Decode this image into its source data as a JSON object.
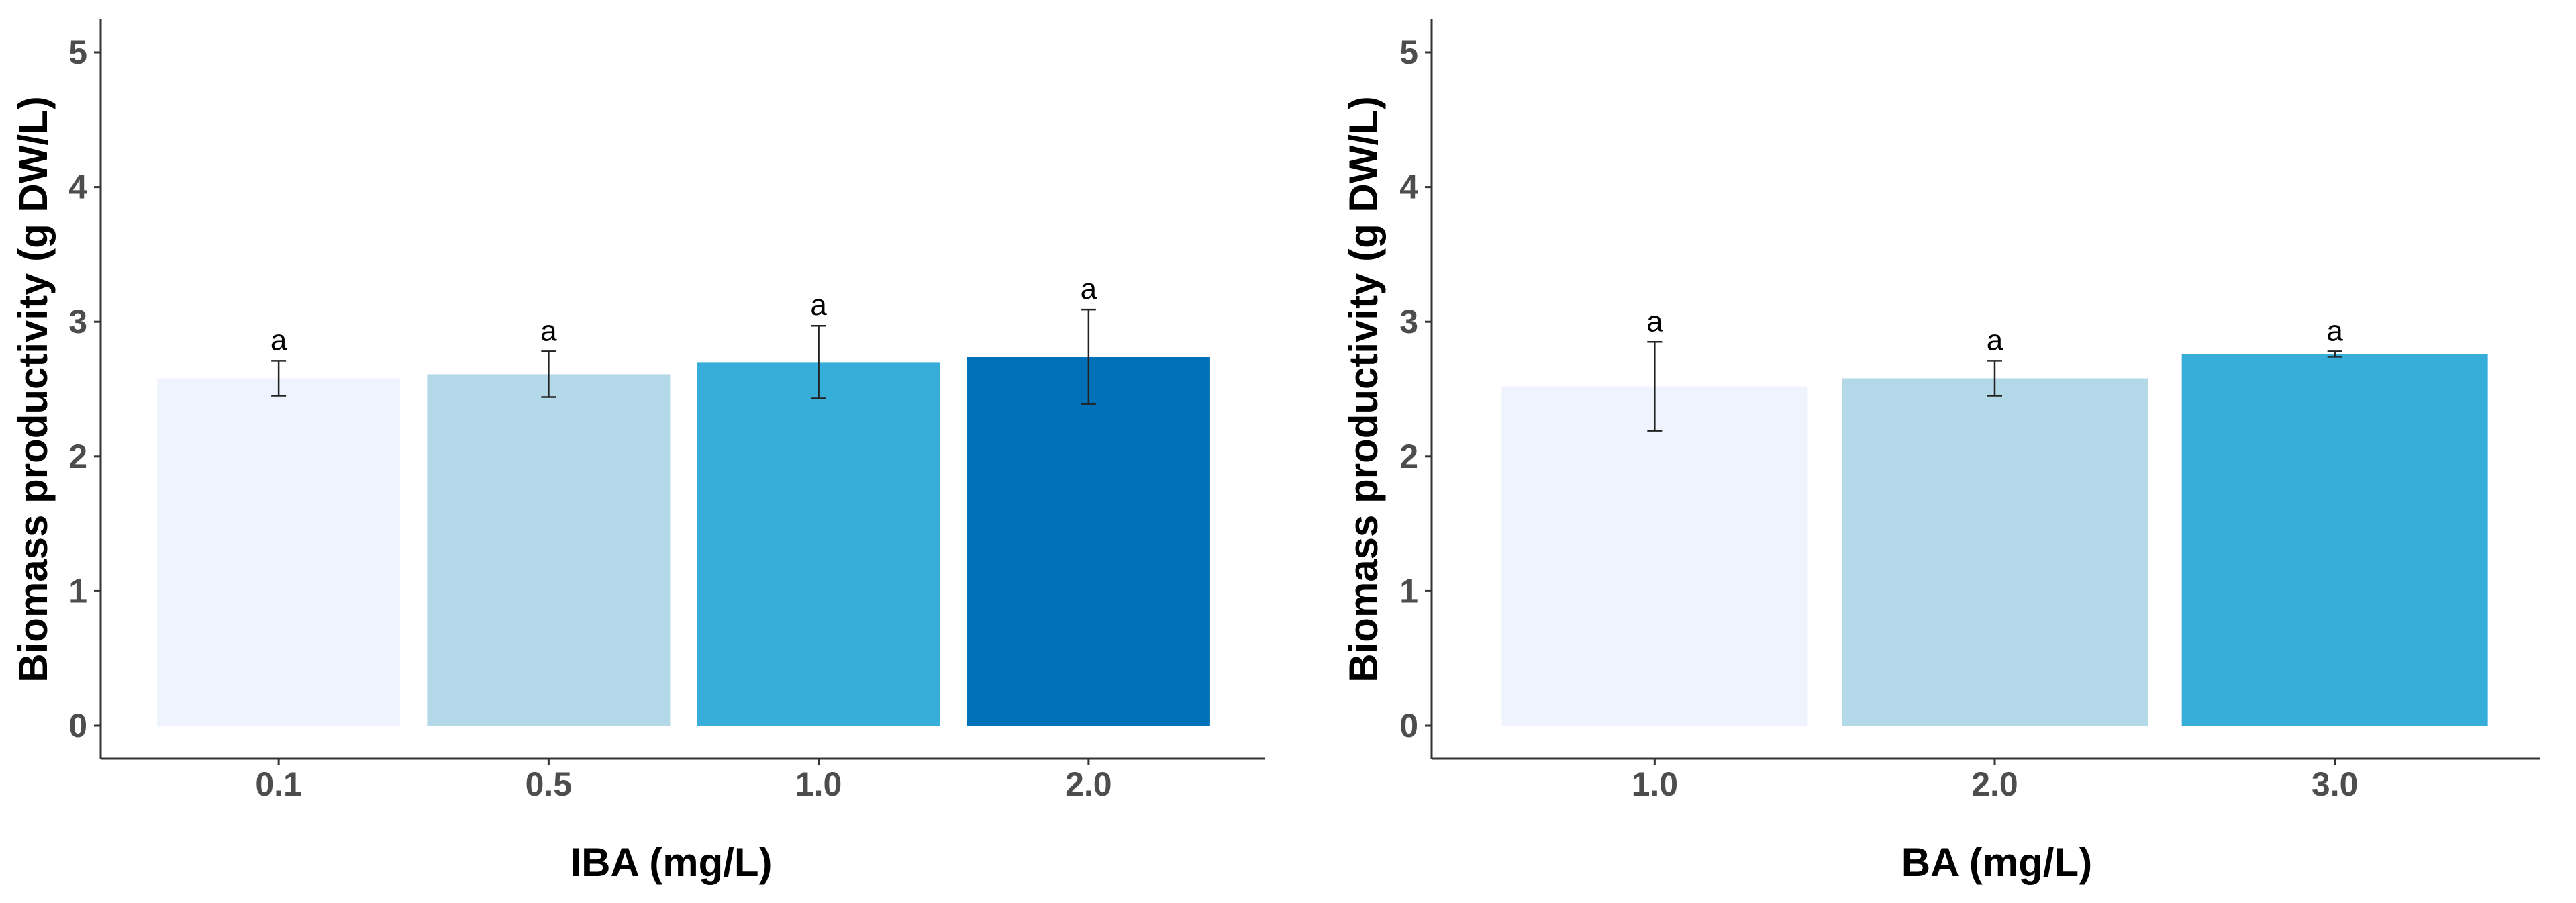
{
  "chart_data": [
    {
      "type": "bar",
      "xlabel": "IBA (mg/L)",
      "ylabel": "Biomass productivity (g DW/L)",
      "ylim": [
        0,
        5
      ],
      "yticks": [
        "0",
        "1",
        "2",
        "3",
        "4",
        "5"
      ],
      "categories": [
        "0.1",
        "0.5",
        "1.0",
        "2.0"
      ],
      "values": [
        2.58,
        2.61,
        2.7,
        2.74
      ],
      "errors": [
        0.13,
        0.17,
        0.27,
        0.35
      ],
      "labels": [
        "a",
        "a",
        "a",
        "a"
      ],
      "colors": [
        "#eef3fd",
        "#b3d8e7",
        "#37aed9",
        "#0071b8"
      ],
      "grid": false,
      "legend": "none"
    },
    {
      "type": "bar",
      "xlabel": "BA (mg/L)",
      "ylabel": "Biomass productivity (g DW/L)",
      "ylim": [
        0,
        5
      ],
      "yticks": [
        "0",
        "1",
        "2",
        "3",
        "4",
        "5"
      ],
      "categories": [
        "1.0",
        "2.0",
        "3.0"
      ],
      "values": [
        2.52,
        2.58,
        2.76
      ],
      "errors": [
        0.33,
        0.13,
        0.02
      ],
      "labels": [
        "a",
        "a",
        "a"
      ],
      "colors": [
        "#eef3fd",
        "#b3d8e7",
        "#37aed9"
      ],
      "grid": false,
      "legend": "none"
    }
  ]
}
